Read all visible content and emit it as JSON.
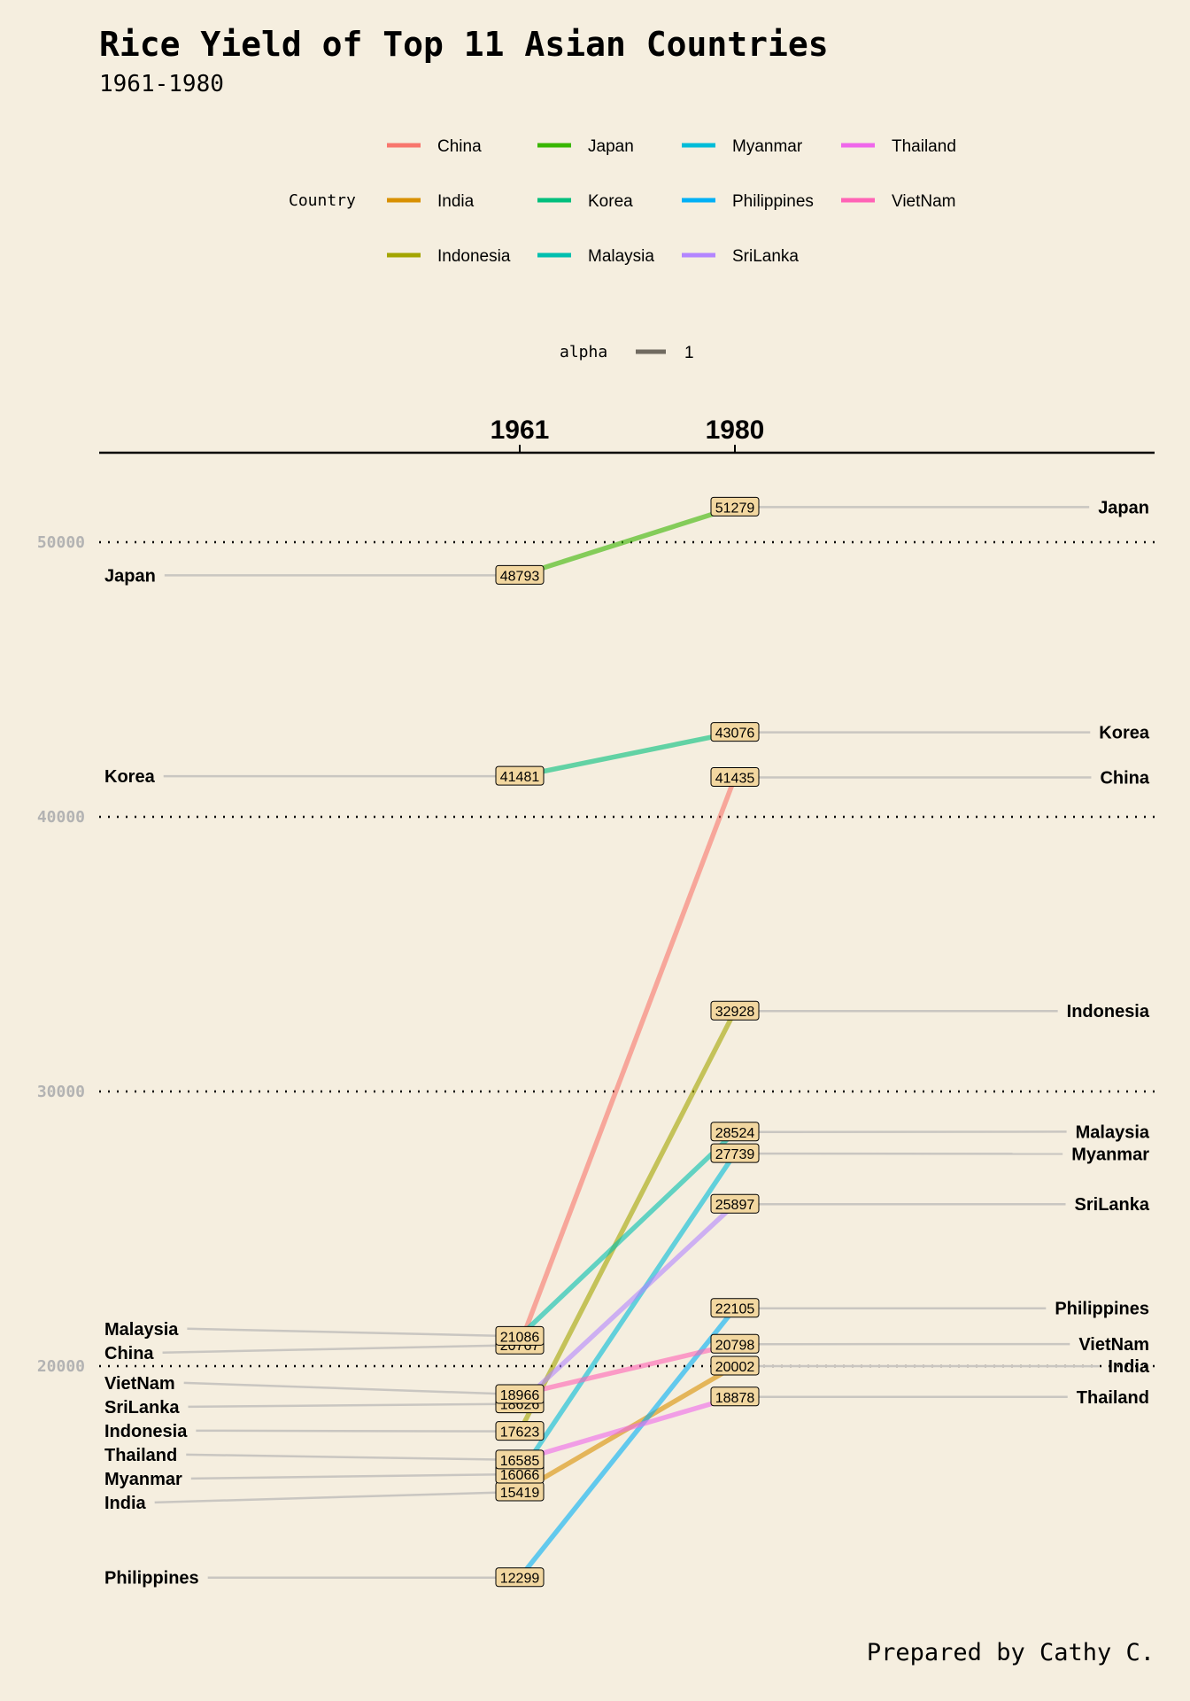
{
  "title": "Rice Yield of Top 11 Asian Countries",
  "subtitle": "1961-1980",
  "caption": "Prepared by Cathy C.",
  "legend": {
    "country_title": "Country",
    "alpha_title": "alpha",
    "alpha_value": "1",
    "alpha_color": "#706a60"
  },
  "colors": {
    "background": "#f5eedf",
    "label_box": "#f2d7a0",
    "connector": "#c9c6c1",
    "gridline": "#000000",
    "axis_text": "#b3b3b3"
  },
  "chart_data": {
    "type": "line",
    "title": "Rice Yield of Top 11 Asian Countries",
    "subtitle": "1961-1980",
    "x": [
      "1961",
      "1980"
    ],
    "y_ticks": [
      20000,
      30000,
      40000,
      50000
    ],
    "ylim": [
      10000,
      55000
    ],
    "grid": "dotted horizontal",
    "legend_position": "top",
    "series": [
      {
        "name": "China",
        "color": "#f8766d",
        "values": [
          20767,
          41435
        ]
      },
      {
        "name": "India",
        "color": "#d89000",
        "values": [
          15419,
          20002
        ]
      },
      {
        "name": "Indonesia",
        "color": "#a3a500",
        "values": [
          17623,
          32928
        ]
      },
      {
        "name": "Japan",
        "color": "#39b600",
        "values": [
          48793,
          51279
        ]
      },
      {
        "name": "Korea",
        "color": "#00bf7d",
        "values": [
          41481,
          43076
        ]
      },
      {
        "name": "Malaysia",
        "color": "#00bfaf",
        "values": [
          21086,
          28524
        ]
      },
      {
        "name": "Myanmar",
        "color": "#00bcd8",
        "values": [
          16066,
          27739
        ]
      },
      {
        "name": "Philippines",
        "color": "#00b0f6",
        "values": [
          12299,
          22105
        ]
      },
      {
        "name": "SriLanka",
        "color": "#b385ff",
        "values": [
          18626,
          25897
        ]
      },
      {
        "name": "Thailand",
        "color": "#ef67eb",
        "values": [
          16585,
          18878
        ]
      },
      {
        "name": "VietNam",
        "color": "#ff63b6",
        "values": [
          18966,
          20798
        ]
      }
    ]
  }
}
